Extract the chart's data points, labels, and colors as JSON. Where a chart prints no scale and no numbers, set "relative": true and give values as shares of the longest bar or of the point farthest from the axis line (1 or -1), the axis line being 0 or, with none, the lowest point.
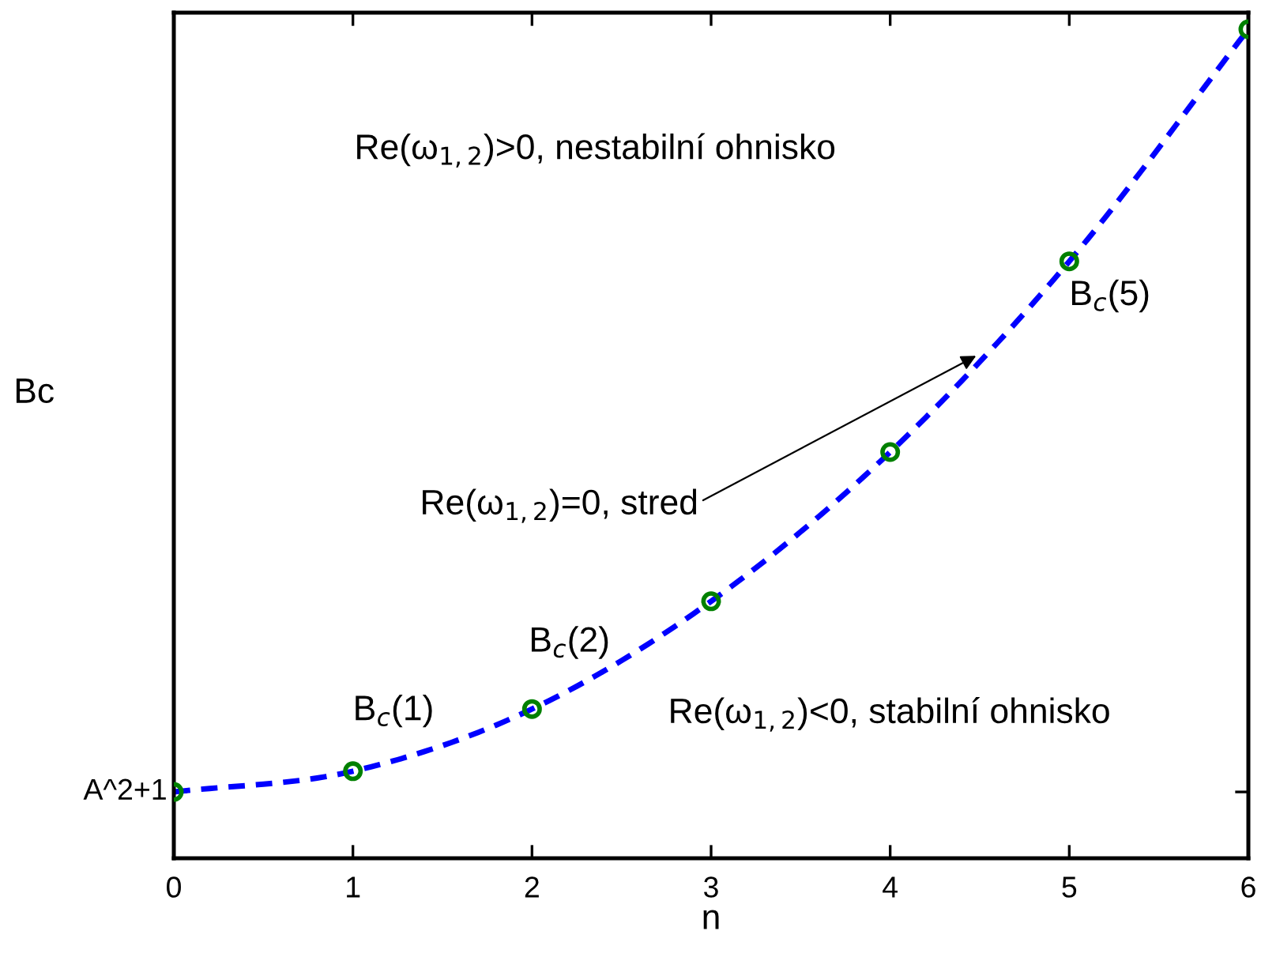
{
  "chart_data": {
    "type": "line",
    "xlabel": "n",
    "ylabel": "Bc",
    "relative": true,
    "x": [
      0,
      1,
      2,
      3,
      4,
      5,
      6
    ],
    "xlim": [
      0,
      6
    ],
    "xticks": [
      0,
      1,
      2,
      3,
      4,
      5,
      6
    ],
    "grid": false,
    "series": [
      {
        "color": "#0000ff",
        "line_style": "dashed",
        "marker": "none",
        "values": [
          0.08,
          0.105,
          0.18,
          0.31,
          0.49,
          0.72,
          1.0
        ]
      },
      {
        "type": "scatter",
        "color": "#008000",
        "marker": "circle",
        "values": [
          0.08,
          0.105,
          0.18,
          0.31,
          0.49,
          0.72,
          1.0
        ]
      }
    ],
    "annotations": [
      {
        "text": "A^2+1",
        "x": 0,
        "y": 0.08
      },
      "Re(ω$_{1,2}$)>0, nestabilní ohnisko",
      {
        "text": "B$_{c}$(1)",
        "x": 1,
        "y": 0.105
      },
      {
        "text": "B$_{c}$(2)",
        "x": 2,
        "y": 0.18
      },
      {
        "text": "B$_{c}$(5)",
        "x": 5,
        "y": 0.72
      },
      {
        "text": "Re(ω$_{1,2}$)=0, stred",
        "x": 4.48,
        "y": 0.606
      },
      "Re(ω$_{1,2}$)<0, stabilní ohnisko"
    ]
  }
}
